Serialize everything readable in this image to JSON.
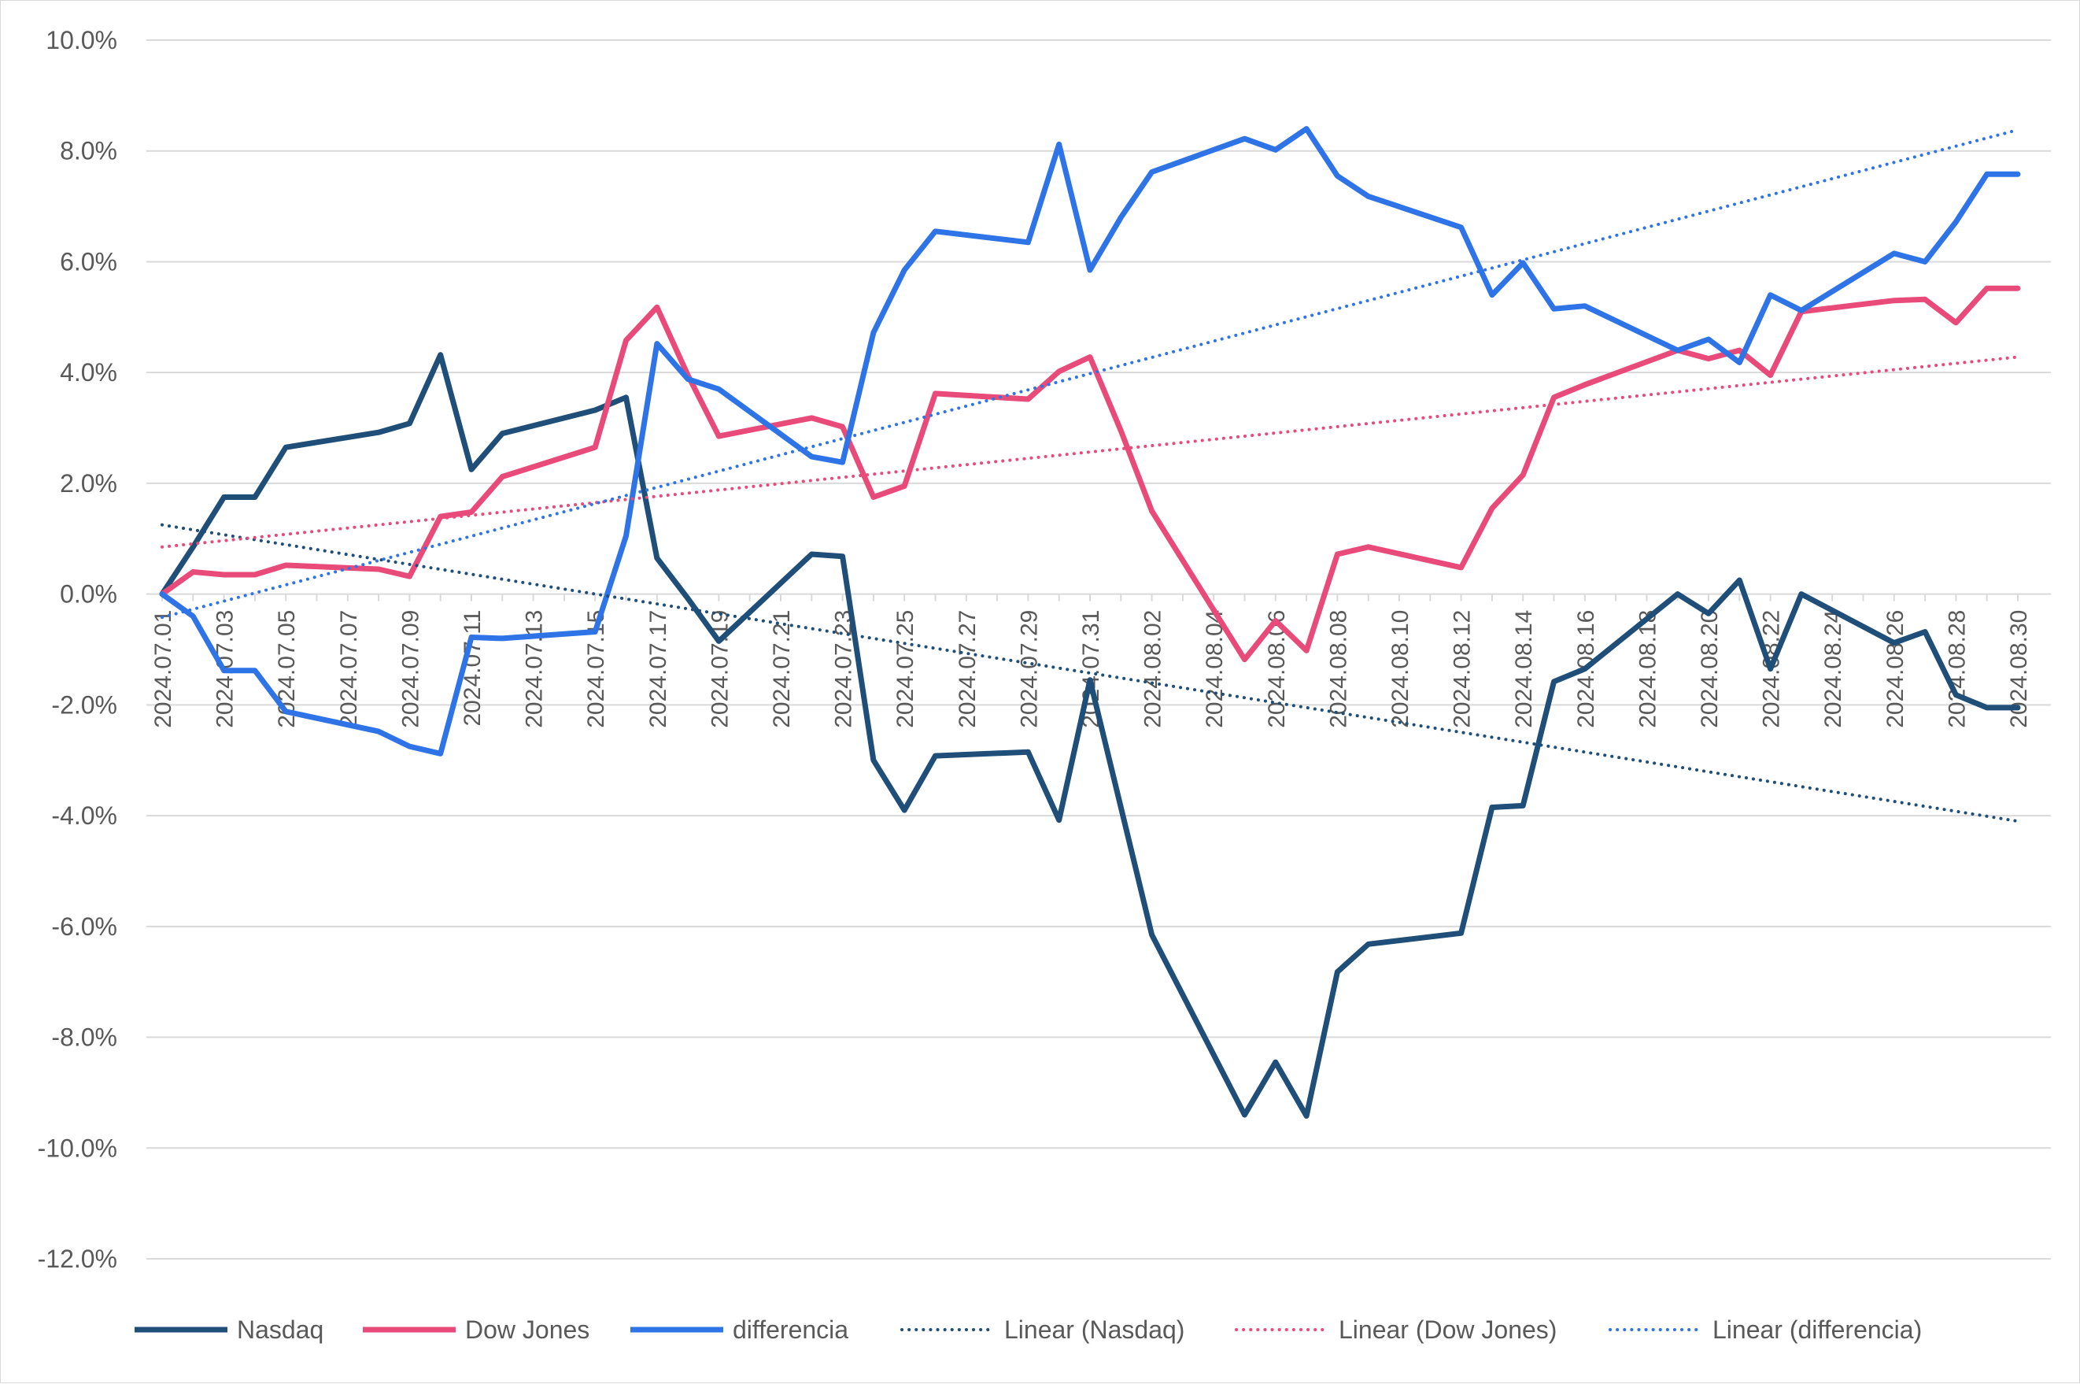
{
  "chart_data": {
    "type": "line",
    "title": "",
    "xlabel": "",
    "ylabel": "",
    "ylim": [
      -0.12,
      0.1
    ],
    "y_ticks": [
      0.1,
      0.08,
      0.06,
      0.04,
      0.02,
      0.0,
      -0.02,
      -0.04,
      -0.06,
      -0.08,
      -0.1,
      -0.12
    ],
    "y_tick_labels": [
      "10.0%",
      "8.0%",
      "6.0%",
      "4.0%",
      "2.0%",
      "0.0%",
      "-2.0%",
      "-4.0%",
      "-6.0%",
      "-8.0%",
      "-10.0%",
      "-12.0%"
    ],
    "x_range": [
      "2024.07.01",
      "2024.08.30"
    ],
    "x_tick_labels": [
      "2024.07.01",
      "2024.07.03",
      "2024.07.05",
      "2024.07.07",
      "2024.07.09",
      "2024.07.11",
      "2024.07.13",
      "2024.07.15",
      "2024.07.17",
      "2024.07.19",
      "2024.07.21",
      "2024.07.23",
      "2024.07.25",
      "2024.07.27",
      "2024.07.29",
      "2024.07.31",
      "2024.08.02",
      "2024.08.04",
      "2024.08.06",
      "2024.08.08",
      "2024.08.10",
      "2024.08.12",
      "2024.08.14",
      "2024.08.16",
      "2024.08.18",
      "2024.08.20",
      "2024.08.22",
      "2024.08.24",
      "2024.08.26",
      "2024.08.28",
      "2024.08.30"
    ],
    "grid": true,
    "legend_position": "bottom",
    "series": [
      {
        "name": "Nasdaq",
        "color": "#1f4e79",
        "style": "solid",
        "points": [
          [
            "2024.07.01",
            0.0
          ],
          [
            "2024.07.02",
            0.0085
          ],
          [
            "2024.07.03",
            0.0175
          ],
          [
            "2024.07.04",
            0.0175
          ],
          [
            "2024.07.05",
            0.0265
          ],
          [
            "2024.07.08",
            0.0292
          ],
          [
            "2024.07.09",
            0.0308
          ],
          [
            "2024.07.10",
            0.0432
          ],
          [
            "2024.07.11",
            0.0225
          ],
          [
            "2024.07.12",
            0.029
          ],
          [
            "2024.07.15",
            0.0332
          ],
          [
            "2024.07.16",
            0.0355
          ],
          [
            "2024.07.17",
            0.0065
          ],
          [
            "2024.07.18",
            -0.0008
          ],
          [
            "2024.07.19",
            -0.0085
          ],
          [
            "2024.07.22",
            0.0072
          ],
          [
            "2024.07.23",
            0.0068
          ],
          [
            "2024.07.24",
            -0.03
          ],
          [
            "2024.07.25",
            -0.039
          ],
          [
            "2024.07.26",
            -0.0292
          ],
          [
            "2024.07.29",
            -0.0285
          ],
          [
            "2024.07.30",
            -0.0408
          ],
          [
            "2024.07.31",
            -0.0155
          ],
          [
            "2024.08.01",
            -0.0385
          ],
          [
            "2024.08.02",
            -0.0615
          ],
          [
            "2024.08.05",
            -0.094
          ],
          [
            "2024.08.06",
            -0.0845
          ],
          [
            "2024.08.07",
            -0.0942
          ],
          [
            "2024.08.08",
            -0.0682
          ],
          [
            "2024.08.09",
            -0.0632
          ],
          [
            "2024.08.12",
            -0.0612
          ],
          [
            "2024.08.13",
            -0.0385
          ],
          [
            "2024.08.14",
            -0.0382
          ],
          [
            "2024.08.15",
            -0.0158
          ],
          [
            "2024.08.16",
            -0.0135
          ],
          [
            "2024.08.19",
            0.0
          ],
          [
            "2024.08.20",
            -0.0035
          ],
          [
            "2024.08.21",
            0.0025
          ],
          [
            "2024.08.22",
            -0.0135
          ],
          [
            "2024.08.23",
            0.0
          ],
          [
            "2024.08.26",
            -0.0088
          ],
          [
            "2024.08.27",
            -0.0068
          ],
          [
            "2024.08.28",
            -0.0182
          ],
          [
            "2024.08.29",
            -0.0205
          ],
          [
            "2024.08.30",
            -0.0205
          ]
        ]
      },
      {
        "name": "Dow Jones",
        "color": "#e84b7a",
        "style": "solid",
        "points": [
          [
            "2024.07.01",
            0.0
          ],
          [
            "2024.07.02",
            0.004
          ],
          [
            "2024.07.03",
            0.0035
          ],
          [
            "2024.07.04",
            0.0035
          ],
          [
            "2024.07.05",
            0.0052
          ],
          [
            "2024.07.08",
            0.0045
          ],
          [
            "2024.07.09",
            0.0032
          ],
          [
            "2024.07.10",
            0.014
          ],
          [
            "2024.07.11",
            0.0148
          ],
          [
            "2024.07.12",
            0.0212
          ],
          [
            "2024.07.15",
            0.0265
          ],
          [
            "2024.07.16",
            0.0458
          ],
          [
            "2024.07.17",
            0.0518
          ],
          [
            "2024.07.18",
            0.0395
          ],
          [
            "2024.07.19",
            0.0285
          ],
          [
            "2024.07.22",
            0.0318
          ],
          [
            "2024.07.23",
            0.0302
          ],
          [
            "2024.07.24",
            0.0175
          ],
          [
            "2024.07.25",
            0.0195
          ],
          [
            "2024.07.26",
            0.0362
          ],
          [
            "2024.07.29",
            0.0352
          ],
          [
            "2024.07.30",
            0.0402
          ],
          [
            "2024.07.31",
            0.0428
          ],
          [
            "2024.08.01",
            0.0295
          ],
          [
            "2024.08.02",
            0.015
          ],
          [
            "2024.08.05",
            -0.0118
          ],
          [
            "2024.08.06",
            -0.0048
          ],
          [
            "2024.08.07",
            -0.0102
          ],
          [
            "2024.08.08",
            0.0072
          ],
          [
            "2024.08.09",
            0.0085
          ],
          [
            "2024.08.12",
            0.0048
          ],
          [
            "2024.08.13",
            0.0155
          ],
          [
            "2024.08.14",
            0.0215
          ],
          [
            "2024.08.15",
            0.0355
          ],
          [
            "2024.08.16",
            0.0378
          ],
          [
            "2024.08.19",
            0.044
          ],
          [
            "2024.08.20",
            0.0425
          ],
          [
            "2024.08.21",
            0.044
          ],
          [
            "2024.08.22",
            0.0395
          ],
          [
            "2024.08.23",
            0.051
          ],
          [
            "2024.08.26",
            0.053
          ],
          [
            "2024.08.27",
            0.0532
          ],
          [
            "2024.08.28",
            0.049
          ],
          [
            "2024.08.29",
            0.0552
          ],
          [
            "2024.08.30",
            0.0552
          ]
        ]
      },
      {
        "name": "differencia",
        "color": "#2f74e6",
        "style": "solid",
        "points": [
          [
            "2024.07.01",
            0.0
          ],
          [
            "2024.07.02",
            -0.004
          ],
          [
            "2024.07.03",
            -0.0138
          ],
          [
            "2024.07.04",
            -0.0138
          ],
          [
            "2024.07.05",
            -0.0212
          ],
          [
            "2024.07.08",
            -0.0248
          ],
          [
            "2024.07.09",
            -0.0275
          ],
          [
            "2024.07.10",
            -0.0288
          ],
          [
            "2024.07.11",
            -0.0078
          ],
          [
            "2024.07.12",
            -0.008
          ],
          [
            "2024.07.15",
            -0.0068
          ],
          [
            "2024.07.16",
            0.0105
          ],
          [
            "2024.07.17",
            0.0452
          ],
          [
            "2024.07.18",
            0.0388
          ],
          [
            "2024.07.19",
            0.037
          ],
          [
            "2024.07.22",
            0.0248
          ],
          [
            "2024.07.23",
            0.0238
          ],
          [
            "2024.07.24",
            0.0472
          ],
          [
            "2024.07.25",
            0.0585
          ],
          [
            "2024.07.26",
            0.0655
          ],
          [
            "2024.07.29",
            0.0635
          ],
          [
            "2024.07.30",
            0.0812
          ],
          [
            "2024.07.31",
            0.0585
          ],
          [
            "2024.08.01",
            0.068
          ],
          [
            "2024.08.02",
            0.0762
          ],
          [
            "2024.08.05",
            0.0822
          ],
          [
            "2024.08.06",
            0.0802
          ],
          [
            "2024.08.07",
            0.084
          ],
          [
            "2024.08.08",
            0.0755
          ],
          [
            "2024.08.09",
            0.0718
          ],
          [
            "2024.08.12",
            0.0662
          ],
          [
            "2024.08.13",
            0.054
          ],
          [
            "2024.08.14",
            0.0598
          ],
          [
            "2024.08.15",
            0.0515
          ],
          [
            "2024.08.16",
            0.052
          ],
          [
            "2024.08.19",
            0.044
          ],
          [
            "2024.08.20",
            0.046
          ],
          [
            "2024.08.21",
            0.0418
          ],
          [
            "2024.08.22",
            0.054
          ],
          [
            "2024.08.23",
            0.0512
          ],
          [
            "2024.08.26",
            0.0615
          ],
          [
            "2024.08.27",
            0.06
          ],
          [
            "2024.08.28",
            0.0672
          ],
          [
            "2024.08.29",
            0.0758
          ],
          [
            "2024.08.30",
            0.0758
          ]
        ]
      },
      {
        "name": "Linear (Nasdaq)",
        "color": "#1f4e79",
        "style": "dotted",
        "points": [
          [
            "2024.07.01",
            0.0125
          ],
          [
            "2024.08.30",
            -0.041
          ]
        ]
      },
      {
        "name": "Linear (Dow Jones)",
        "color": "#e84b7a",
        "style": "dotted",
        "points": [
          [
            "2024.07.01",
            0.0085
          ],
          [
            "2024.08.30",
            0.0428
          ]
        ]
      },
      {
        "name": "Linear (differencia)",
        "color": "#2f74e6",
        "style": "dotted",
        "points": [
          [
            "2024.07.01",
            -0.0042
          ],
          [
            "2024.08.30",
            0.0838
          ]
        ]
      }
    ]
  }
}
